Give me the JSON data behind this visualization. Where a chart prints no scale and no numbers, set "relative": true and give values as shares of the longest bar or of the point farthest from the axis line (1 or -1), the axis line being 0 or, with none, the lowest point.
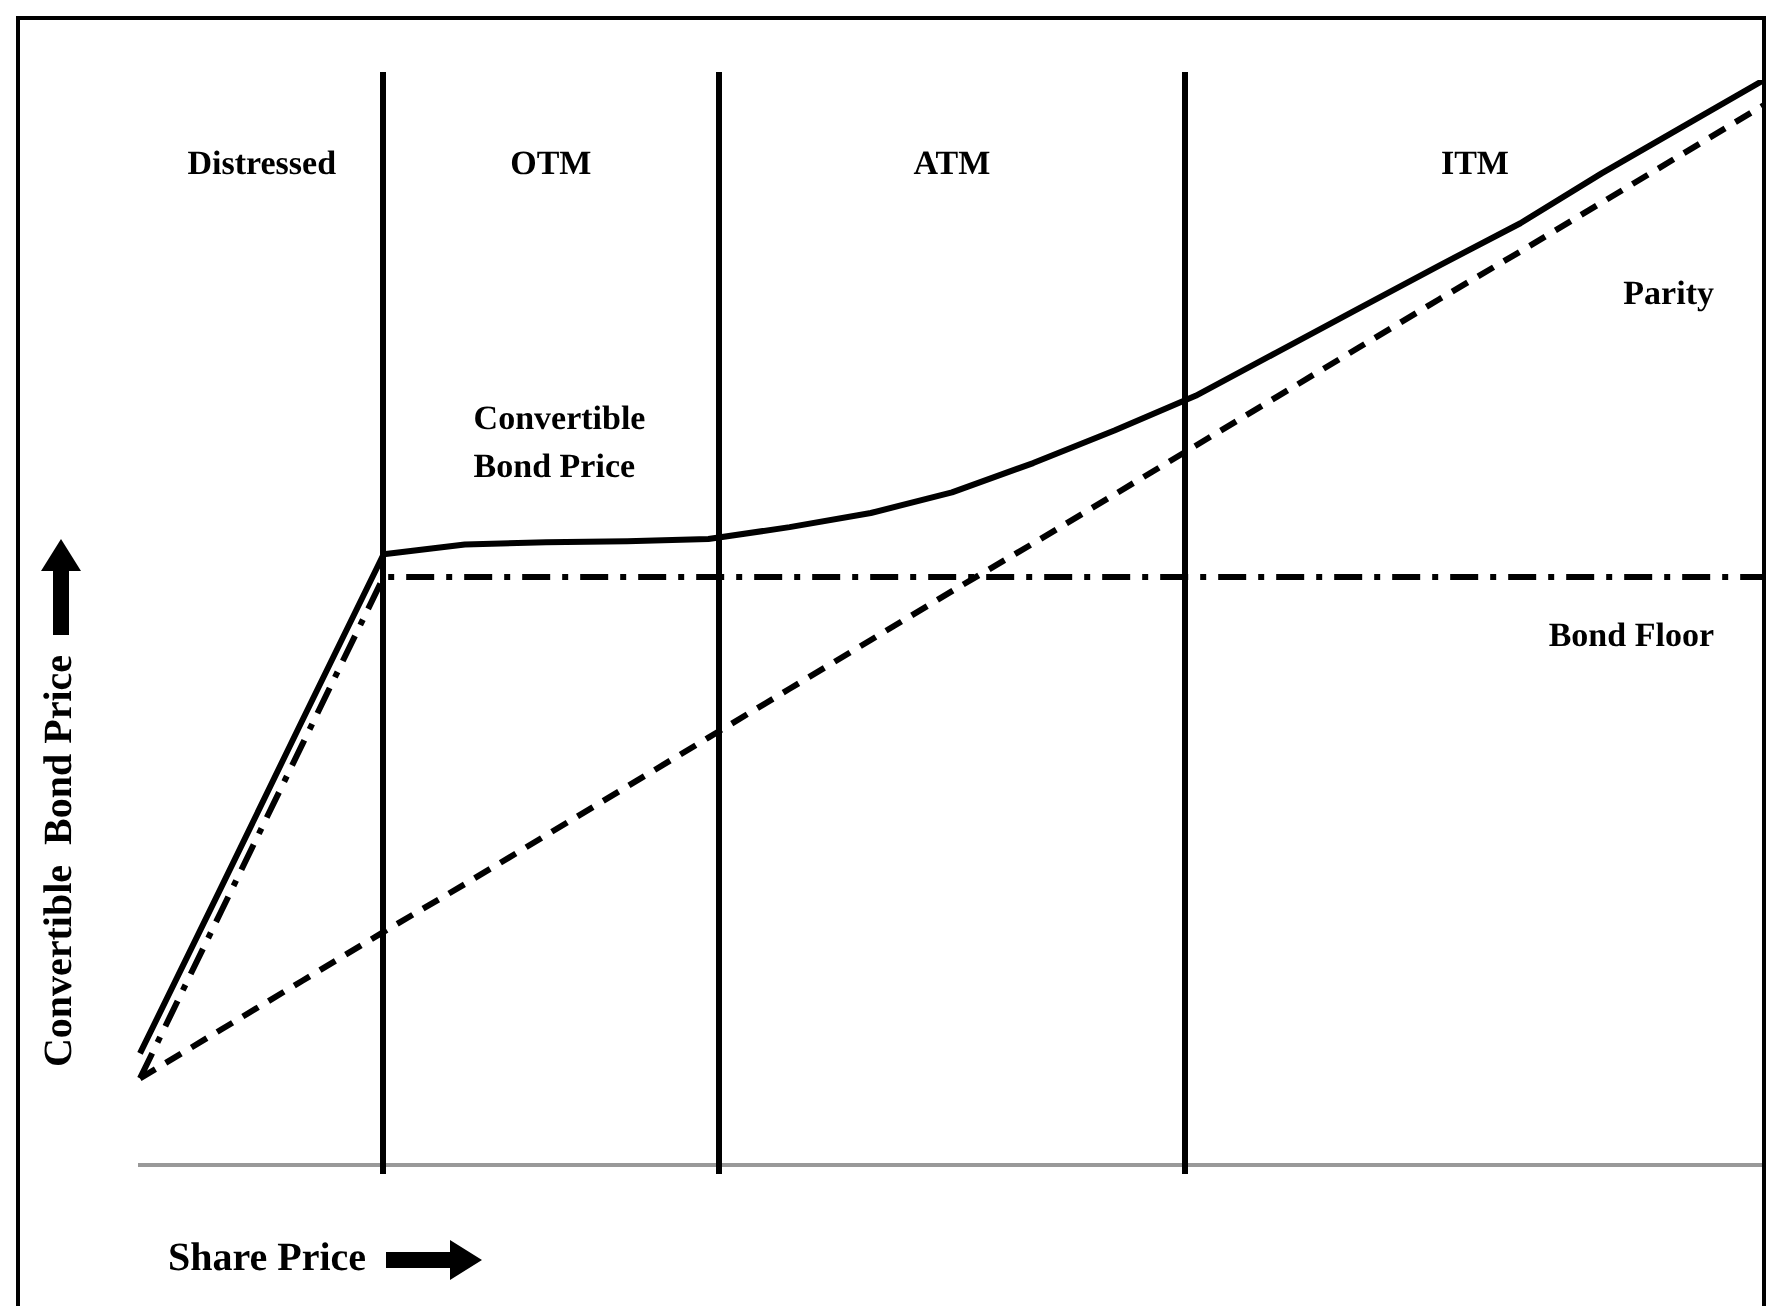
{
  "chart_data": {
    "type": "line",
    "relative": true,
    "xlabel": "Share Price",
    "ylabel": "Convertible  Bond Price",
    "grid": false,
    "legend": false,
    "marker": "none",
    "categories": [
      null,
      null,
      null,
      null,
      null,
      null,
      null,
      null,
      null,
      null,
      null,
      null,
      null,
      null,
      null,
      null,
      null,
      null,
      null,
      null,
      null
    ],
    "series": [
      {
        "name": "Convertible Bond Price",
        "color": "#000000",
        "line_style": "solid",
        "values": [
          0.103,
          0.256,
          0.41,
          0.563,
          0.572,
          0.574,
          0.575,
          0.577,
          0.588,
          0.601,
          0.62,
          0.647,
          0.677,
          0.709,
          0.749,
          0.789,
          0.829,
          0.868,
          0.914,
          0.957,
          1
        ]
      },
      {
        "name": "Parity",
        "color": "#000000",
        "line_style": "dashed",
        "values": [
          0.08,
          0.125,
          0.17,
          0.215,
          0.259,
          0.304,
          0.349,
          0.394,
          0.439,
          0.484,
          0.529,
          0.573,
          0.618,
          0.663,
          0.708,
          0.753,
          0.798,
          0.842,
          0.887,
          0.932,
          0.977
        ]
      },
      {
        "name": "Bond Floor",
        "color": "#000000",
        "line_style": "dashdot",
        "values": [
          0.08,
          0.234,
          0.388,
          0.542,
          0.542,
          0.542,
          0.542,
          0.542,
          0.542,
          0.542,
          0.542,
          0.542,
          0.542,
          0.542,
          0.542,
          0.542,
          0.542,
          0.542,
          0.542,
          0.542,
          0.542
        ]
      }
    ],
    "annotations": [
      "Distressed",
      "OTM",
      "ATM",
      "ITM"
    ]
  }
}
